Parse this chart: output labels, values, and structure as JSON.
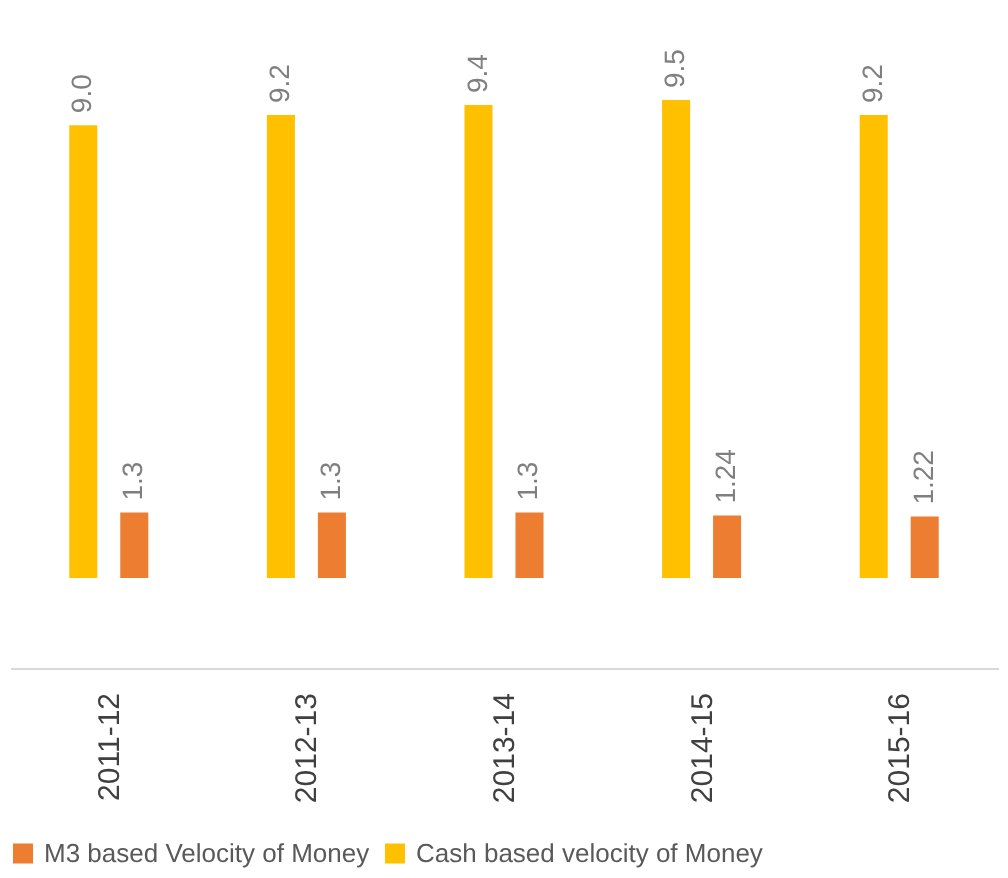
{
  "chart_data": {
    "type": "bar",
    "categories": [
      "2011-12",
      "2012-13",
      "2013-14",
      "2014-15",
      "2015-16"
    ],
    "series": [
      {
        "name": "M3 based Velocity of Money",
        "color": "#ed7d31",
        "values": [
          1.3,
          1.3,
          1.3,
          1.24,
          1.22
        ],
        "value_labels": [
          "1.3",
          "1.3",
          "1.3",
          "1.24",
          "1.22"
        ]
      },
      {
        "name": "Cash based velocity of Money",
        "color": "#ffc000",
        "values": [
          9.0,
          9.2,
          9.4,
          9.5,
          9.2
        ],
        "value_labels": [
          "9.0",
          "9.2",
          "9.4",
          "9.5",
          "9.2"
        ]
      }
    ],
    "legend": "bottom",
    "grid": false
  }
}
